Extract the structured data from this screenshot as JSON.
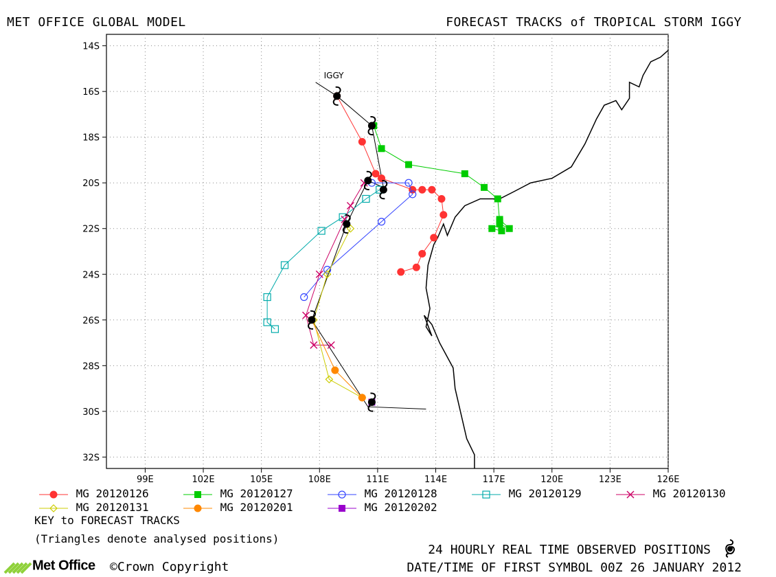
{
  "header": {
    "left_title": "MET OFFICE GLOBAL MODEL",
    "right_title": "FORECAST TRACKS of TROPICAL STORM IGGY"
  },
  "chart_data": {
    "type": "line",
    "title": "FORECAST TRACKS of TROPICAL STORM IGGY",
    "x_ticks": [
      "99E",
      "102E",
      "105E",
      "108E",
      "111E",
      "114E",
      "117E",
      "120E",
      "123E",
      "126E"
    ],
    "y_ticks": [
      "14S",
      "16S",
      "18S",
      "20S",
      "22S",
      "24S",
      "26S",
      "28S",
      "30S",
      "32S"
    ],
    "xlim": [
      97,
      126
    ],
    "ylim": [
      -32.5,
      -13.5
    ],
    "storm_label": "IGGY",
    "observed_track": [
      [
        107.8,
        -15.6
      ],
      [
        108.9,
        -16.2
      ],
      [
        110.7,
        -17.5
      ],
      [
        111.3,
        -20.2
      ],
      [
        110.5,
        -19.9
      ],
      [
        109.4,
        -21.8
      ],
      [
        107.6,
        -26.0
      ],
      [
        110.5,
        -29.8
      ],
      [
        113.5,
        -29.9
      ]
    ],
    "observed_symbols": [
      [
        108.9,
        -16.2
      ],
      [
        110.7,
        -17.5
      ],
      [
        110.5,
        -19.9
      ],
      [
        111.3,
        -20.3
      ],
      [
        109.4,
        -21.8
      ],
      [
        107.6,
        -26.0
      ],
      [
        110.7,
        -29.6
      ]
    ],
    "series": [
      {
        "name": "MG 20120126",
        "color": "#ff3333",
        "marker": "filled-circle",
        "values": [
          [
            108.9,
            -16.2
          ],
          [
            110.2,
            -18.2
          ],
          [
            110.9,
            -19.6
          ],
          [
            111.2,
            -19.8
          ],
          [
            112.8,
            -20.3
          ],
          [
            113.3,
            -20.3
          ],
          [
            113.8,
            -20.3
          ],
          [
            114.3,
            -20.7
          ],
          [
            114.4,
            -21.4
          ],
          [
            113.9,
            -22.4
          ],
          [
            113.3,
            -23.1
          ],
          [
            113.0,
            -23.7
          ],
          [
            112.2,
            -23.9
          ]
        ]
      },
      {
        "name": "MG 20120127",
        "color": "#00cc00",
        "marker": "filled-square",
        "values": [
          [
            110.8,
            -17.5
          ],
          [
            111.2,
            -18.5
          ],
          [
            112.6,
            -19.2
          ],
          [
            115.5,
            -19.6
          ],
          [
            116.5,
            -20.2
          ],
          [
            117.2,
            -20.7
          ],
          [
            117.3,
            -21.7
          ],
          [
            117.4,
            -22.1
          ],
          [
            116.9,
            -22.0
          ],
          [
            117.3,
            -21.8
          ],
          [
            117.8,
            -22.0
          ],
          [
            117.3,
            -21.6
          ]
        ]
      },
      {
        "name": "MG 20120128",
        "color": "#3344ff",
        "marker": "open-circle",
        "values": [
          [
            110.7,
            -20.0
          ],
          [
            112.6,
            -20.0
          ],
          [
            112.8,
            -20.5
          ],
          [
            111.2,
            -21.7
          ],
          [
            108.4,
            -23.8
          ],
          [
            107.2,
            -25.0
          ]
        ]
      },
      {
        "name": "MG 20120129",
        "color": "#00aaaa",
        "marker": "open-square",
        "values": [
          [
            111.1,
            -20.3
          ],
          [
            110.4,
            -20.7
          ],
          [
            109.2,
            -21.5
          ],
          [
            108.1,
            -22.1
          ],
          [
            106.2,
            -23.6
          ],
          [
            105.3,
            -25.0
          ],
          [
            105.3,
            -26.1
          ],
          [
            105.7,
            -26.4
          ]
        ]
      },
      {
        "name": "MG 20120130",
        "color": "#cc0066",
        "marker": "cross",
        "values": [
          [
            110.3,
            -20.0
          ],
          [
            109.6,
            -21.0
          ],
          [
            109.3,
            -21.6
          ],
          [
            108.0,
            -24.0
          ],
          [
            107.3,
            -25.8
          ],
          [
            107.7,
            -27.1
          ],
          [
            108.6,
            -27.1
          ]
        ]
      },
      {
        "name": "MG 20120131",
        "color": "#cccc00",
        "marker": "open-diamond",
        "values": [
          [
            109.4,
            -21.8
          ],
          [
            109.6,
            -22.0
          ],
          [
            108.4,
            -24.0
          ],
          [
            107.7,
            -26.0
          ],
          [
            108.5,
            -28.6
          ],
          [
            110.2,
            -29.4
          ]
        ]
      },
      {
        "name": "MG 20120201",
        "color": "#ff8800",
        "marker": "filled-circle",
        "values": [
          [
            107.6,
            -26.0
          ],
          [
            108.8,
            -28.2
          ],
          [
            110.2,
            -29.4
          ]
        ]
      },
      {
        "name": "MG 20120202",
        "color": "#9900cc",
        "marker": "filled-square",
        "values": [
          [
            110.7,
            -29.6
          ]
        ]
      }
    ]
  },
  "legend": {
    "key_title": "KEY to FORECAST TRACKS",
    "key_note": "(Triangles denote analysed positions)"
  },
  "footer": {
    "logo_text": "Met Office",
    "copyright": "©Crown Copyright",
    "observed_label": "24 HOURLY REAL TIME OBSERVED POSITIONS",
    "datetime": "DATE/TIME OF FIRST SYMBOL 00Z 26 JANUARY 2012"
  }
}
